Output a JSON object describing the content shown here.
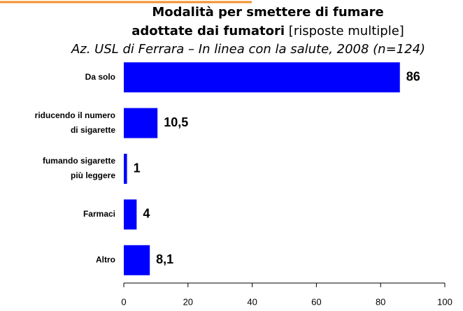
{
  "chart_data": {
    "type": "barh",
    "title": [
      "Modalità per smettere di fumare",
      "adottate dai fumatori"
    ],
    "title_note": "[risposte multiple]",
    "subtitle": "Az. USL di Ferrara – In linea con la salute, 2008 (n=124)",
    "categories": [
      [
        "Da solo"
      ],
      [
        "riducendo il numero",
        "di sigarette"
      ],
      [
        "fumando sigarette",
        "più leggere"
      ],
      [
        "Farmaci"
      ],
      [
        "Altro"
      ]
    ],
    "values": [
      86,
      10.5,
      1,
      4,
      8.1
    ],
    "value_labels": [
      "86",
      "10,5",
      "1",
      "4",
      "8,1"
    ],
    "color": "#0000ff",
    "xlim": [
      0,
      100
    ],
    "xticks": [
      0,
      20,
      40,
      60,
      80,
      100
    ]
  }
}
